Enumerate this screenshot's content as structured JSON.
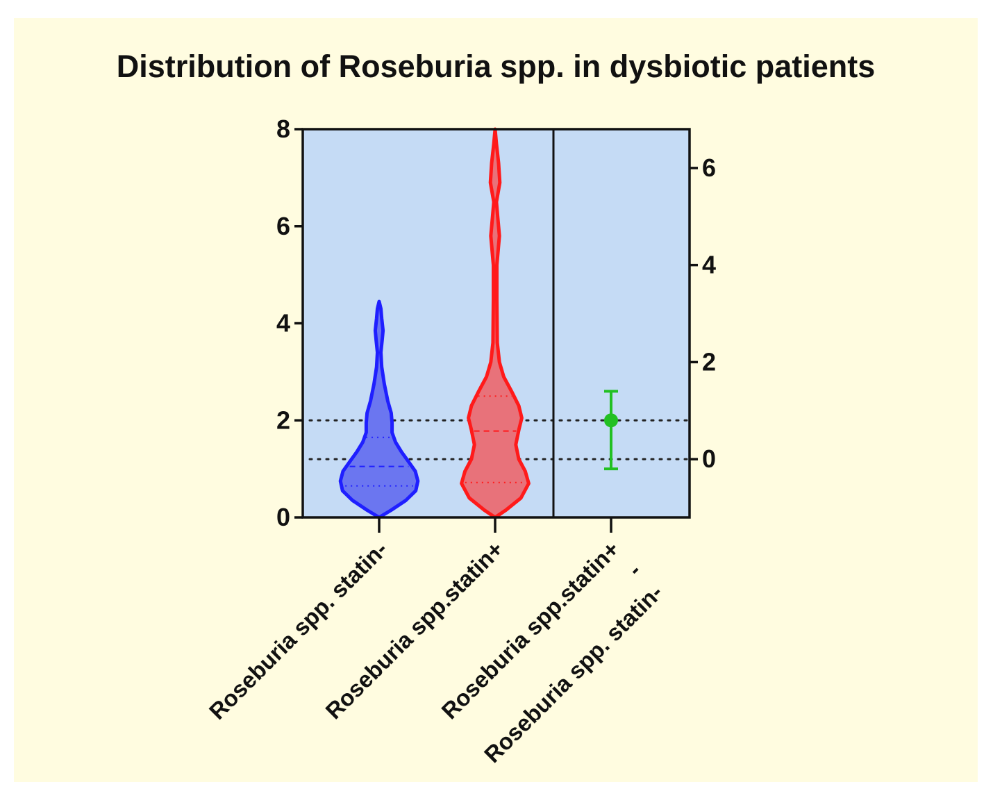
{
  "chart_data": {
    "type": "violin",
    "title": "Distribution of Roseburia spp. in dysbiotic patients",
    "xlabel": "",
    "ylabel": "",
    "ylim": [
      0,
      8
    ],
    "y_ticks": [
      "0",
      "2",
      "4",
      "6",
      "8"
    ],
    "right_axis": {
      "label": "",
      "ylim": [
        -1.2,
        6.8
      ],
      "ticks": [
        "0",
        "2",
        "4",
        "6"
      ]
    },
    "categories": [
      "Roseburia spp. statin-",
      "Roseburia spp.statin+",
      "Roseburia spp.statin+\n-\nRoseburia spp. statin-"
    ],
    "series": [
      {
        "category": "Roseburia spp. statin-",
        "color": "#1f1fff",
        "fill": "#6b76f0",
        "range": [
          0,
          4.45
        ],
        "quartiles": {
          "q1": 0.65,
          "median": 1.05,
          "q3": 1.65
        },
        "density_profile": [
          [
            0.0,
            0.0
          ],
          [
            0.15,
            0.28
          ],
          [
            0.35,
            0.62
          ],
          [
            0.55,
            0.85
          ],
          [
            0.75,
            0.9
          ],
          [
            0.95,
            0.84
          ],
          [
            1.15,
            0.68
          ],
          [
            1.35,
            0.52
          ],
          [
            1.55,
            0.38
          ],
          [
            1.75,
            0.3
          ],
          [
            1.95,
            0.3
          ],
          [
            2.15,
            0.28
          ],
          [
            2.4,
            0.2
          ],
          [
            2.75,
            0.12
          ],
          [
            3.1,
            0.06
          ],
          [
            3.4,
            0.04
          ],
          [
            3.65,
            0.07
          ],
          [
            3.85,
            0.09
          ],
          [
            4.1,
            0.06
          ],
          [
            4.3,
            0.04
          ],
          [
            4.45,
            0.0
          ]
        ]
      },
      {
        "category": "Roseburia spp.statin+",
        "color": "#ff1a1a",
        "fill": "#e8727a",
        "range": [
          0,
          8.0
        ],
        "quartiles": {
          "q1": 0.72,
          "median": 1.78,
          "q3": 2.5
        },
        "density_profile": [
          [
            0.0,
            0.0
          ],
          [
            0.15,
            0.25
          ],
          [
            0.4,
            0.6
          ],
          [
            0.7,
            0.78
          ],
          [
            0.95,
            0.7
          ],
          [
            1.2,
            0.55
          ],
          [
            1.5,
            0.48
          ],
          [
            1.8,
            0.55
          ],
          [
            2.05,
            0.62
          ],
          [
            2.3,
            0.55
          ],
          [
            2.6,
            0.38
          ],
          [
            2.9,
            0.2
          ],
          [
            3.2,
            0.1
          ],
          [
            3.6,
            0.05
          ],
          [
            4.5,
            0.04
          ],
          [
            5.2,
            0.04
          ],
          [
            5.8,
            0.1
          ],
          [
            6.2,
            0.06
          ],
          [
            6.5,
            0.03
          ],
          [
            6.9,
            0.11
          ],
          [
            7.3,
            0.08
          ],
          [
            7.7,
            0.03
          ],
          [
            8.0,
            0.0
          ]
        ]
      }
    ],
    "difference": {
      "category": "Roseburia spp.statin+\n-\nRoseburia spp. statin-",
      "mean": 0.8,
      "ci": [
        -0.2,
        1.4
      ],
      "color": "#22c022",
      "axis": "right"
    },
    "reference_lines_right_axis": [
      0,
      0.8
    ],
    "plot_background": "#c5dbf5",
    "page_background": "#fffce0",
    "grid": false
  }
}
